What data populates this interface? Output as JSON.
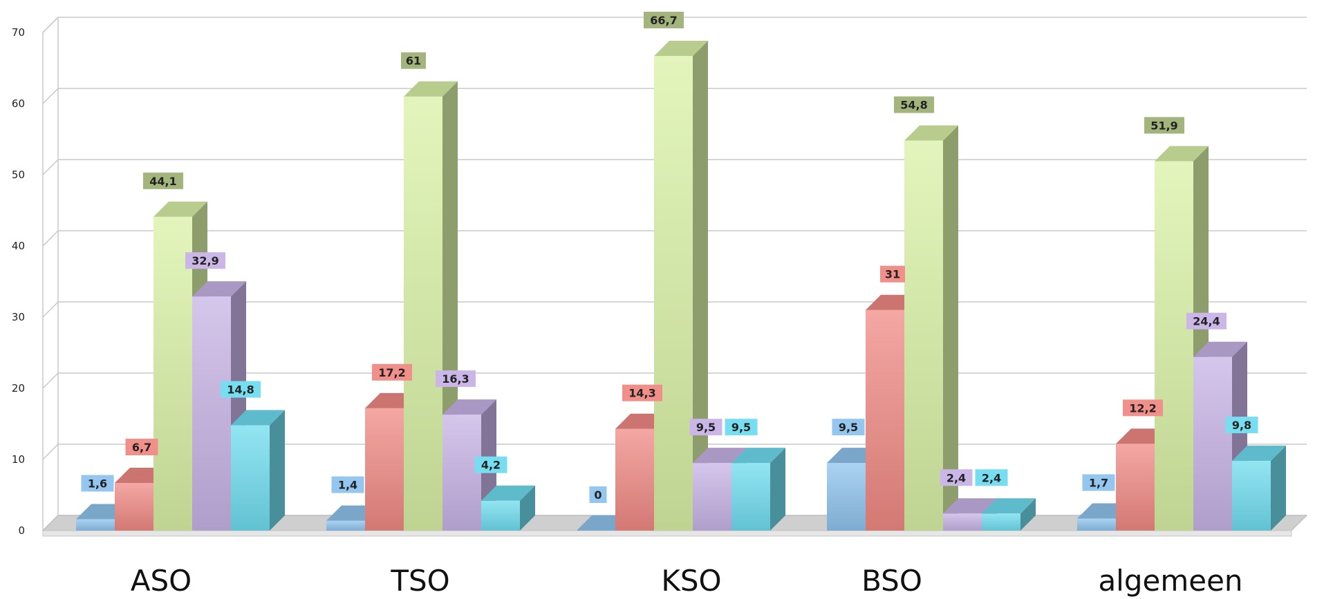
{
  "chart_data": {
    "type": "bar",
    "categories": [
      "ASO",
      "TSO",
      "KSO",
      "BSO",
      "algemeen"
    ],
    "series": [
      {
        "values": [
          1.6,
          1.4,
          0,
          9.5,
          1.7
        ],
        "labels": [
          "1,6",
          "1,4",
          "0",
          "9,5",
          "1,7"
        ],
        "color": "#8fc3ee"
      },
      {
        "values": [
          6.7,
          17.2,
          14.3,
          31,
          12.2
        ],
        "labels": [
          "6,7",
          "17,2",
          "14,3",
          "31",
          "12,2"
        ],
        "color": "#f08a84"
      },
      {
        "values": [
          44.1,
          61,
          66.7,
          54.8,
          51.9
        ],
        "labels": [
          "44,1",
          "61",
          "66,7",
          "54,8",
          "51,9"
        ],
        "color": "#d9f1a6"
      },
      {
        "values": [
          32.9,
          16.3,
          9.5,
          2.4,
          24.4
        ],
        "labels": [
          "32,9",
          "16,3",
          "9,5",
          "2,4",
          "24,4"
        ],
        "color": "#c7b3e6"
      },
      {
        "values": [
          14.8,
          4.2,
          9.5,
          2.4,
          9.8
        ],
        "labels": [
          "14,8",
          "4,2",
          "9,5",
          "2,4",
          "9,8"
        ],
        "color": "#6fdcef"
      }
    ],
    "y_ticks": [
      "0",
      "10",
      "20",
      "30",
      "40",
      "50",
      "60",
      "70"
    ],
    "ylim": [
      0,
      70
    ],
    "grid": true,
    "legend": "none",
    "style": "3d-column",
    "title": "",
    "xlabel": "",
    "ylabel": ""
  }
}
